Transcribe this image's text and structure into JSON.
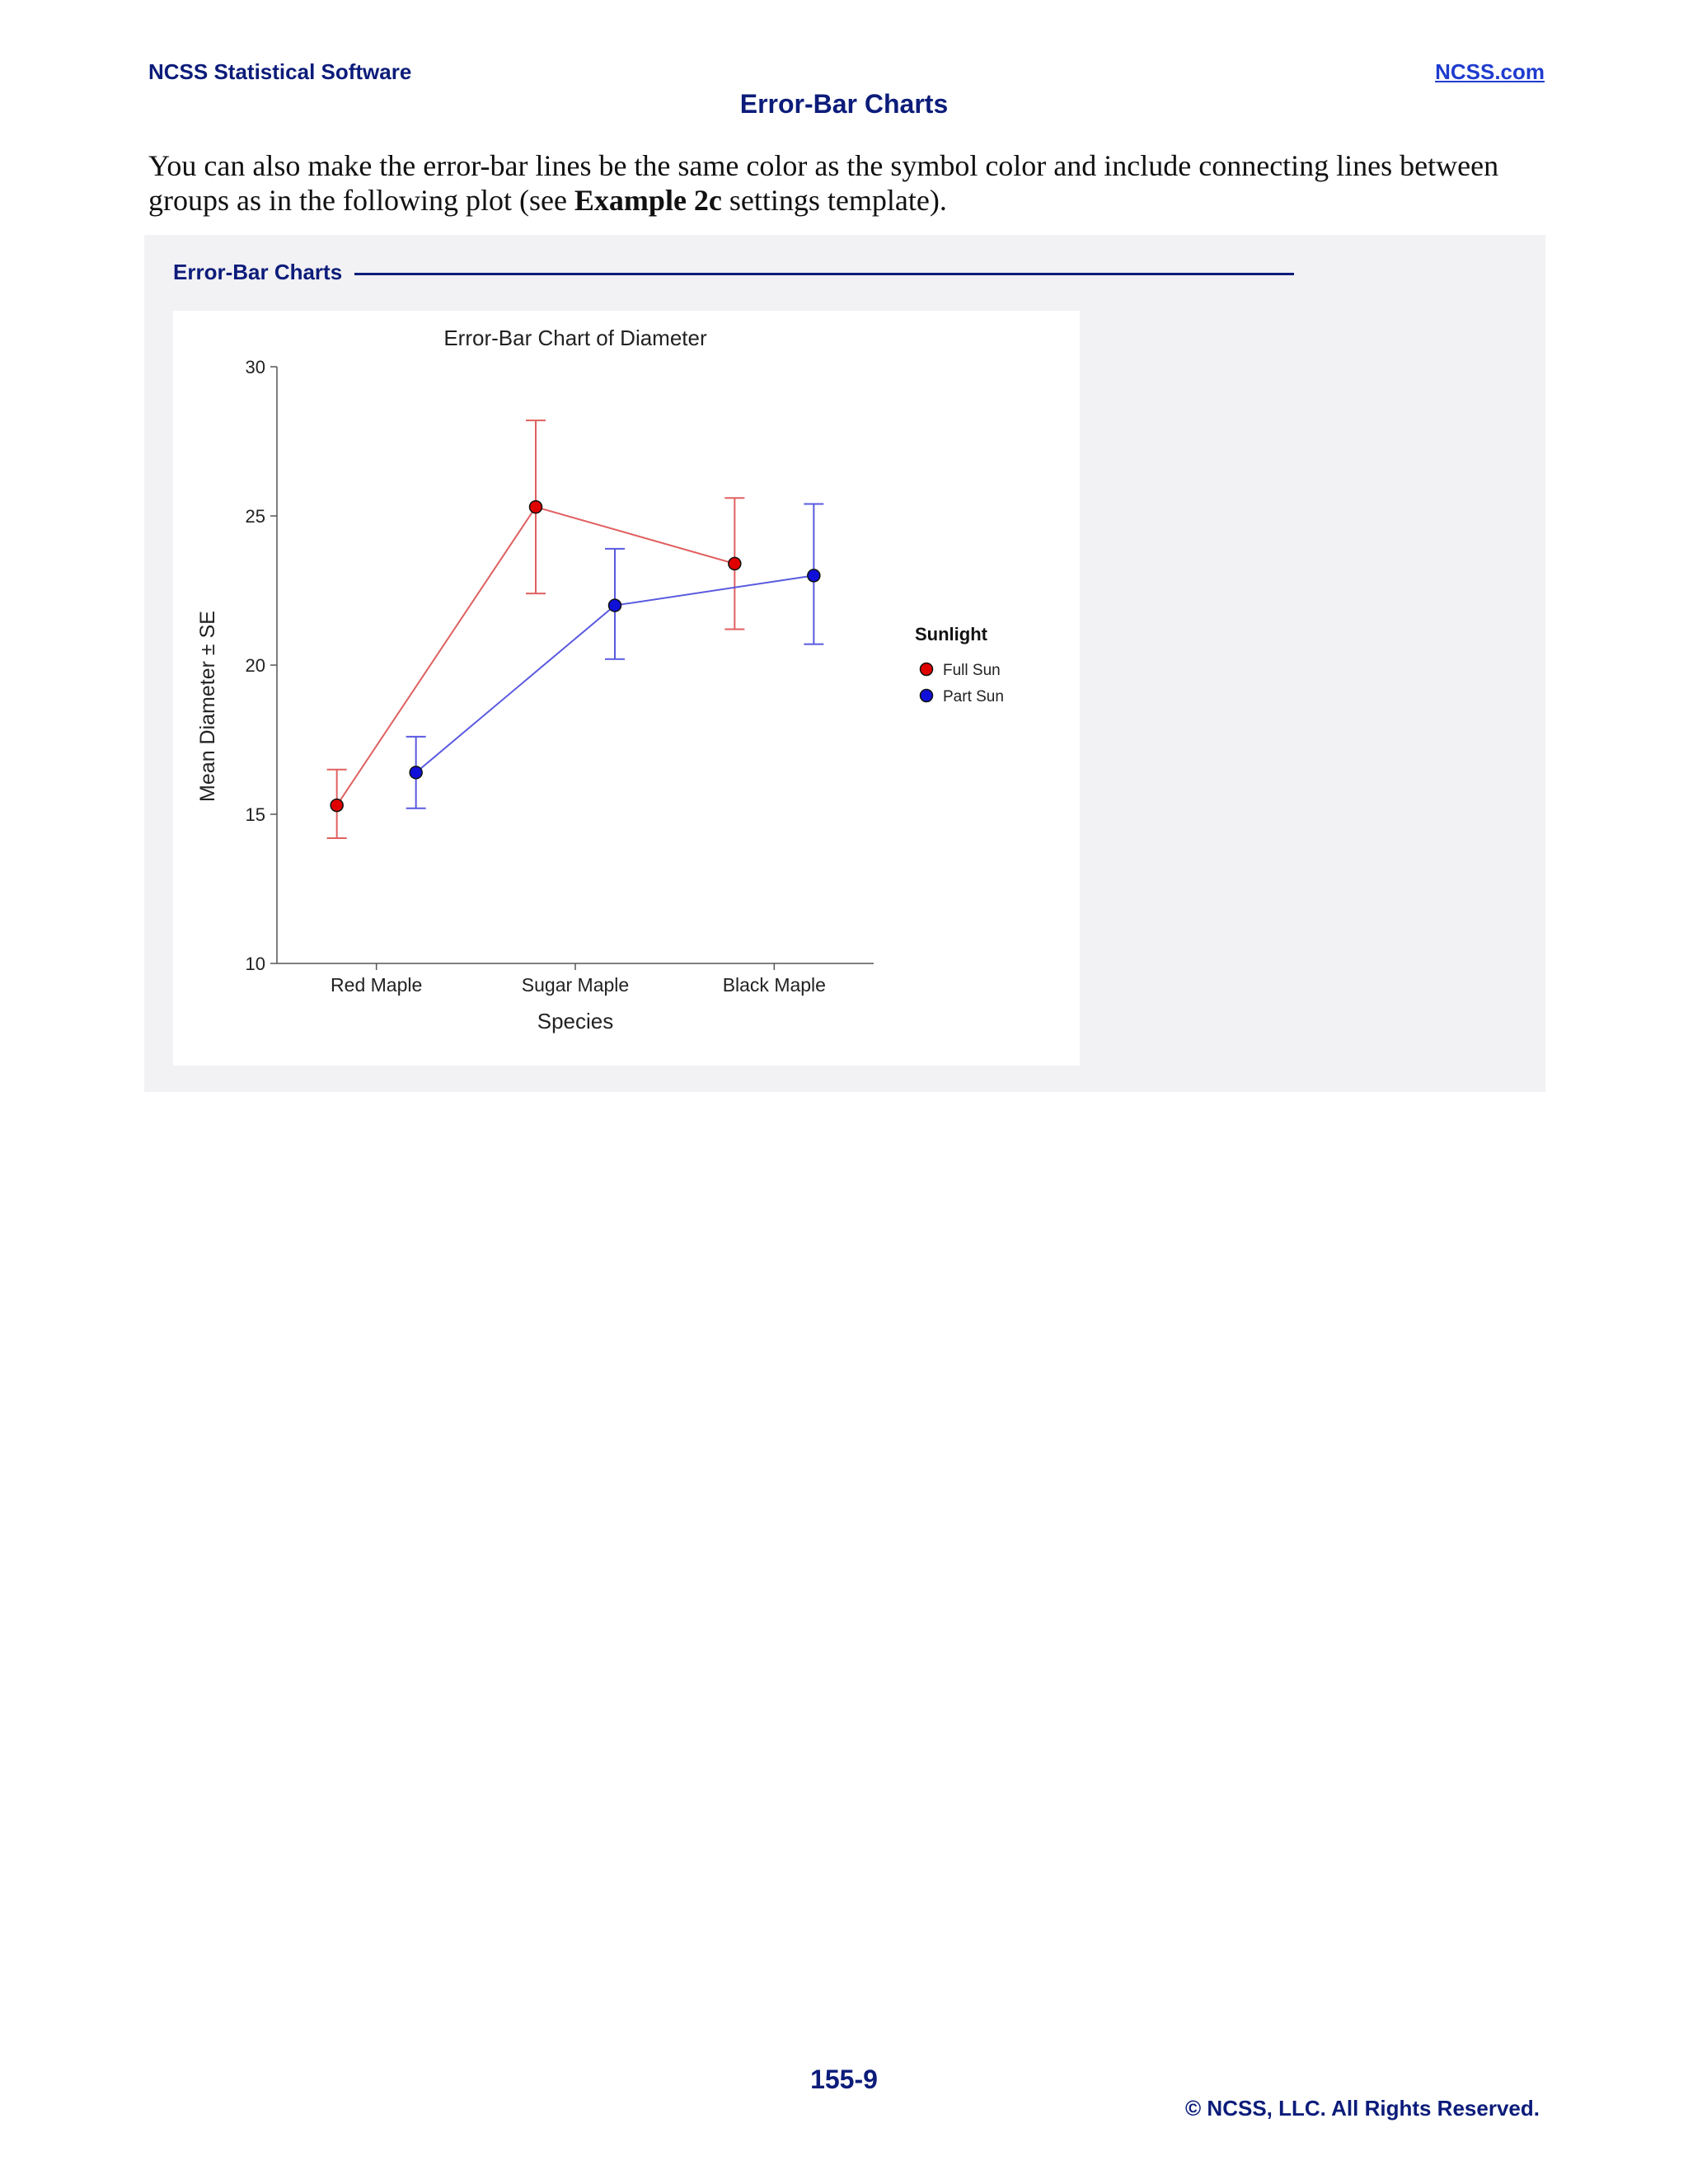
{
  "header": {
    "left": "NCSS Statistical Software",
    "right": "NCSS.com",
    "title": "Error-Bar Charts"
  },
  "paragraph": {
    "before": "You can also make the error-bar lines be the same color as the symbol color and include connecting lines between groups as in the following plot (see ",
    "bold": "Example 2c",
    "after": " settings template)."
  },
  "panel": {
    "title": "Error-Bar Charts"
  },
  "chart_data": {
    "type": "line",
    "title": "Error-Bar Chart of Diameter",
    "xlabel": "Species",
    "ylabel": "Mean Diameter ± SE",
    "categories": [
      "Red Maple",
      "Sugar Maple",
      "Black Maple"
    ],
    "ylim": [
      10,
      30
    ],
    "yticks": [
      10,
      15,
      20,
      25,
      30
    ],
    "legend": {
      "title": "Sunlight",
      "position": "right"
    },
    "series": [
      {
        "name": "Full Sun",
        "color": "#e00000",
        "line_color": "#e06060",
        "values": [
          15.3,
          25.3,
          23.4
        ],
        "lower": [
          14.2,
          22.4,
          21.2
        ],
        "upper": [
          16.5,
          28.2,
          25.6
        ]
      },
      {
        "name": "Part Sun",
        "color": "#1010d8",
        "line_color": "#5a5ae0",
        "values": [
          16.4,
          22.0,
          23.0
        ],
        "lower": [
          15.2,
          20.2,
          20.7
        ],
        "upper": [
          17.6,
          23.9,
          25.4
        ]
      }
    ]
  },
  "footer": {
    "page_number": "155-9",
    "copyright": "© NCSS, LLC. All Rights Reserved."
  }
}
